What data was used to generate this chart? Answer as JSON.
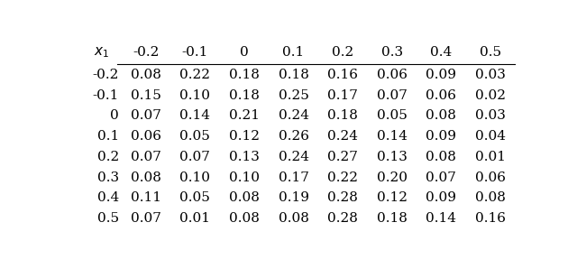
{
  "header_label": "$x_1$",
  "col_headers": [
    "-0.2",
    "-0.1",
    "0",
    "0.1",
    "0.2",
    "0.3",
    "0.4",
    "0.5"
  ],
  "row_headers": [
    "-0.2",
    "-0.1",
    "0",
    "0.1",
    "0.2",
    "0.3",
    "0.4",
    "0.5"
  ],
  "table_data": [
    [
      0.08,
      0.22,
      0.18,
      0.18,
      0.16,
      0.06,
      0.09,
      0.03
    ],
    [
      0.15,
      0.1,
      0.18,
      0.25,
      0.17,
      0.07,
      0.06,
      0.02
    ],
    [
      0.07,
      0.14,
      0.21,
      0.24,
      0.18,
      0.05,
      0.08,
      0.03
    ],
    [
      0.06,
      0.05,
      0.12,
      0.26,
      0.24,
      0.14,
      0.09,
      0.04
    ],
    [
      0.07,
      0.07,
      0.13,
      0.24,
      0.27,
      0.13,
      0.08,
      0.01
    ],
    [
      0.08,
      0.1,
      0.1,
      0.17,
      0.22,
      0.2,
      0.07,
      0.06
    ],
    [
      0.11,
      0.05,
      0.08,
      0.19,
      0.28,
      0.12,
      0.09,
      0.08
    ],
    [
      0.07,
      0.01,
      0.08,
      0.08,
      0.28,
      0.18,
      0.14,
      0.16
    ]
  ],
  "bg_color": "#ffffff",
  "text_color": "#000000",
  "font_size": 11,
  "fig_width": 6.4,
  "fig_height": 3.08,
  "dpi": 100
}
